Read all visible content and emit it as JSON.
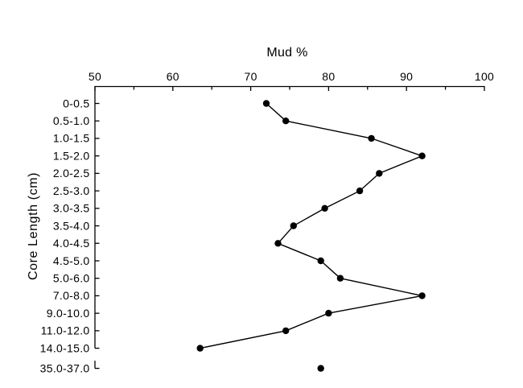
{
  "chart_data": {
    "type": "line",
    "orientation": "horizontal-categories",
    "title": "Mud %",
    "xlabel": "Mud %",
    "ylabel": "Core Length (cm)",
    "x_axis_position": "top",
    "xlim": [
      50,
      100
    ],
    "x_major_ticks": [
      50,
      60,
      70,
      80,
      90,
      100
    ],
    "x_minor_ticks": [
      55,
      65,
      75,
      85,
      95
    ],
    "grid": false,
    "legend": false,
    "background_color": "#ffffff",
    "axis_color": "#000000",
    "categories": [
      "0-0.5",
      "0.5-1.0",
      "1.0-1.5",
      "1.5-2.0",
      "2.0-2.5",
      "2.5-3.0",
      "3.0-3.5",
      "3.5-4.0",
      "4.0-4.5",
      "4.5-5.0",
      "5.0-6.0",
      "7.0-8.0",
      "9.0-10.0",
      "11.0-12.0",
      "14.0-15.0",
      "35.0-37.0"
    ],
    "y_axis_break_before_category": "35.0-37.0",
    "series": [
      {
        "name": "Mud %",
        "values": [
          72,
          74.5,
          85.5,
          92,
          86.5,
          84,
          79.5,
          75.5,
          73.5,
          79,
          81.5,
          92,
          80,
          74.5,
          63.5,
          79
        ],
        "marker": "filled-circle",
        "marker_color": "#000000",
        "line_color": "#000000",
        "line_connect_end_index": 14
      }
    ]
  }
}
